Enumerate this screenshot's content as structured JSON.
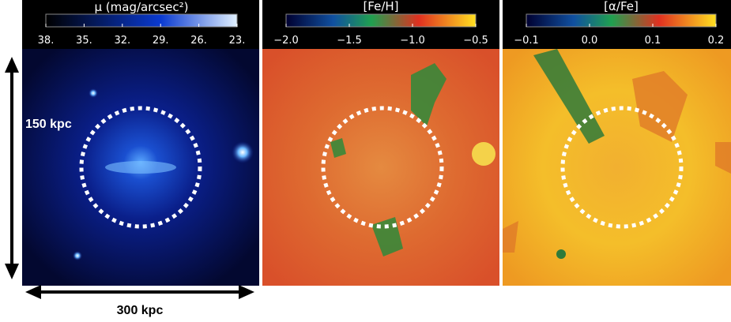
{
  "panels": [
    {
      "title": "μ (mag/arcsec²)",
      "ticks": [
        "38.",
        "35.",
        "32.",
        "29.",
        "26.",
        "23."
      ]
    },
    {
      "title": "[Fe/H]",
      "ticks": [
        "−2.0",
        "−1.5",
        "−1.0",
        "−0.5"
      ]
    },
    {
      "title": "[α/Fe]",
      "ticks": [
        "−0.1",
        "0.0",
        "0.1",
        "0.2"
      ]
    }
  ],
  "annotations": {
    "vertical_scale": "150 kpc",
    "horizontal_scale": "300 kpc"
  }
}
